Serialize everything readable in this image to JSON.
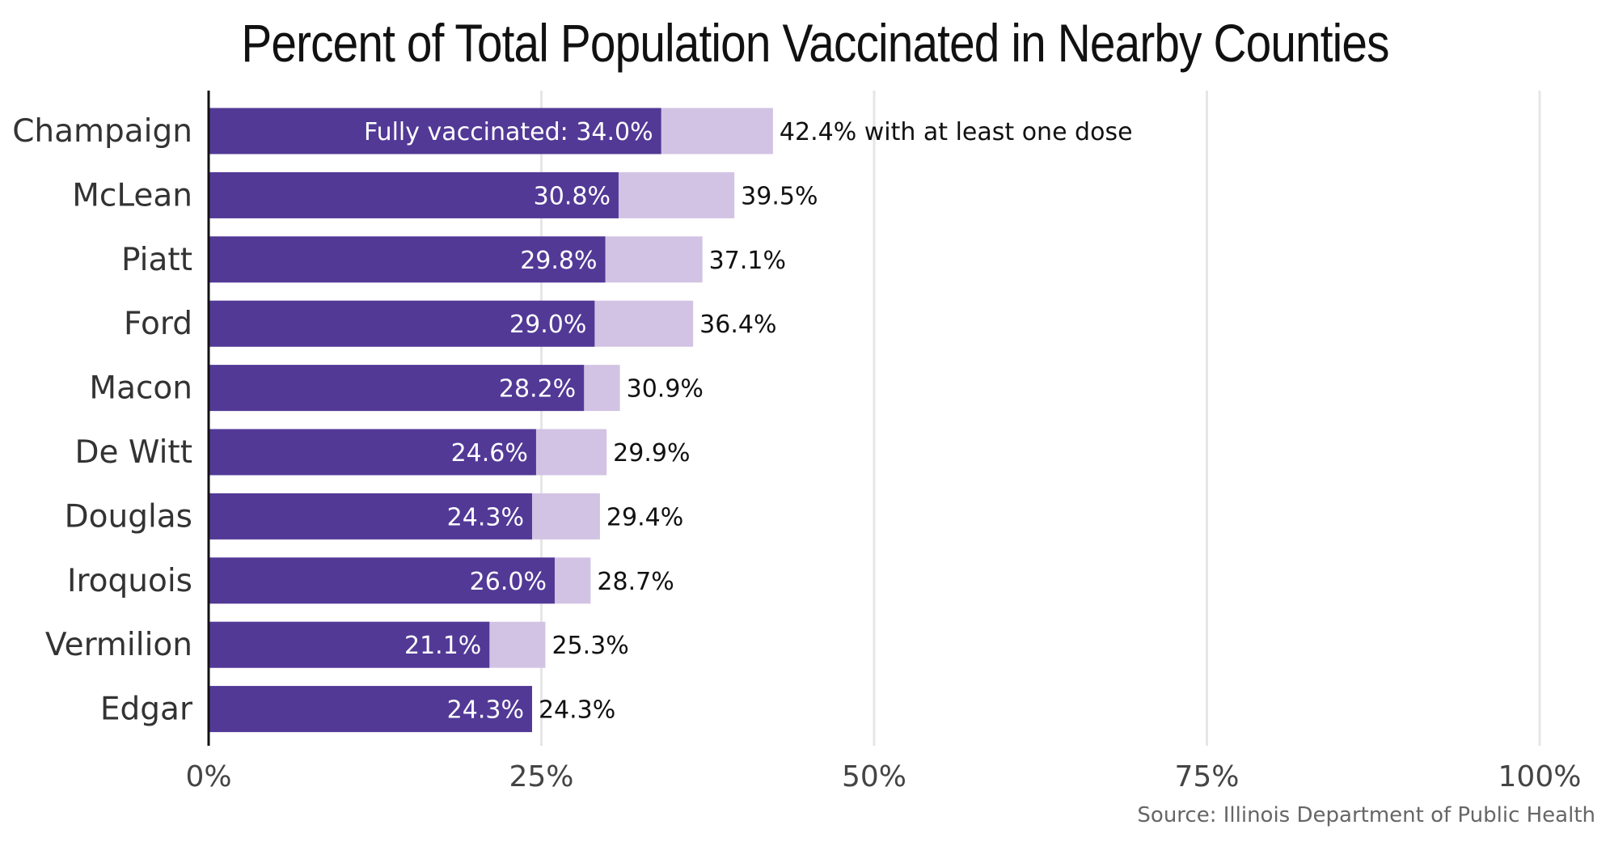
{
  "chart_data": {
    "type": "bar",
    "orientation": "horizontal",
    "stacking": "overlay",
    "title": "Percent of Total Population Vaccinated in Nearby Counties",
    "categories": [
      "Champaign",
      "McLean",
      "Piatt",
      "Ford",
      "Macon",
      "De Witt",
      "Douglas",
      "Iroquois",
      "Vermilion",
      "Edgar"
    ],
    "series": [
      {
        "name": "Fully vaccinated",
        "values": [
          34.0,
          30.8,
          29.8,
          29.0,
          28.2,
          24.6,
          24.3,
          26.0,
          21.1,
          24.3
        ],
        "labels": [
          "Fully vaccinated: 34.0%",
          "30.8%",
          "29.8%",
          "29.0%",
          "28.2%",
          "24.6%",
          "24.3%",
          "26.0%",
          "21.1%",
          "24.3%"
        ],
        "color": "#523996"
      },
      {
        "name": "with at least one dose",
        "values": [
          42.4,
          39.5,
          37.1,
          36.4,
          30.9,
          29.9,
          29.4,
          28.7,
          25.3,
          24.3
        ],
        "labels": [
          "42.4% with at least one dose",
          "39.5%",
          "37.1%",
          "36.4%",
          "30.9%",
          "29.9%",
          "29.4%",
          "28.7%",
          "25.3%",
          "24.3%"
        ],
        "color": "#d2c3e4"
      }
    ],
    "x_ticks": [
      "0%",
      "25%",
      "50%",
      "75%",
      "100%"
    ],
    "xlim": [
      0,
      100
    ],
    "grid": "vertical",
    "source": "Source: Illinois Department of Public Health"
  }
}
